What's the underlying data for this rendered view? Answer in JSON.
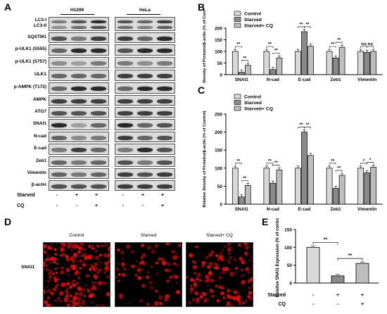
{
  "panels": {
    "A": "A",
    "B": "B",
    "C": "C",
    "D": "D",
    "E": "E"
  },
  "blot": {
    "cell_lines": [
      "H1299",
      "HeLa"
    ],
    "proteins": [
      "LC3-I",
      "LC3-II",
      "SQSTM1",
      "p-ULK1 (S555)",
      "p-ULK1 (S757)",
      "ULK1",
      "p-AMPK (T172)",
      "AMPK",
      "ATG7",
      "SNAI1",
      "N-cad",
      "E-cad",
      "Zeb1",
      "Vimentin",
      "β-actin"
    ],
    "conditions": [
      {
        "label": "Starved",
        "values": [
          "-",
          "+",
          "+",
          "-",
          "+",
          "+"
        ]
      },
      {
        "label": "CQ",
        "values": [
          "-",
          "-",
          "+",
          "-",
          "-",
          "+"
        ]
      }
    ]
  },
  "chart_data": [
    {
      "panel": "B",
      "type": "bar",
      "ylabel": "Relative Density of Proteins/β-actin (% of Control)",
      "ylim": [
        0,
        200
      ],
      "yticks": [
        "0",
        "50",
        "100",
        "150",
        "200"
      ],
      "categories": [
        "SNAI1",
        "N-cad",
        "E-cad",
        "Zeb1",
        "Vimentin"
      ],
      "series": [
        {
          "name": "Control",
          "values": [
            100,
            100,
            100,
            100,
            100
          ]
        },
        {
          "name": "Starved",
          "values": [
            10,
            22,
            185,
            72,
            96
          ]
        },
        {
          "name": "Starved+ CQ",
          "values": [
            40,
            72,
            122,
            118,
            100
          ]
        }
      ],
      "significance": [
        {
          "category": "SNAI1",
          "pairs": [
            {
              "from": 0,
              "to": 1,
              "label": "**"
            },
            {
              "from": 1,
              "to": 2,
              "label": "**"
            }
          ]
        },
        {
          "category": "N-cad",
          "pairs": [
            {
              "from": 0,
              "to": 1,
              "label": "**"
            },
            {
              "from": 1,
              "to": 2,
              "label": "**"
            }
          ]
        },
        {
          "category": "E-cad",
          "pairs": [
            {
              "from": 0,
              "to": 1,
              "label": "**"
            },
            {
              "from": 1,
              "to": 2,
              "label": "**"
            }
          ]
        },
        {
          "category": "Zeb1",
          "pairs": [
            {
              "from": 0,
              "to": 1,
              "label": "**"
            },
            {
              "from": 1,
              "to": 2,
              "label": "**"
            }
          ]
        },
        {
          "category": "Vimentin",
          "pairs": [
            {
              "from": 0,
              "to": 1,
              "label": "ns"
            },
            {
              "from": 1,
              "to": 2,
              "label": "ns"
            }
          ]
        }
      ],
      "legend": "top-left"
    },
    {
      "panel": "C",
      "type": "bar",
      "ylabel": "Relative Density of Proteins/β-actin (% of Control)",
      "ylim": [
        0,
        250
      ],
      "yticks": [
        "0",
        "50",
        "100",
        "150",
        "200",
        "250"
      ],
      "categories": [
        "SNAI1",
        "N-cad",
        "E-cad",
        "Zeb1",
        "Vimentin"
      ],
      "series": [
        {
          "name": "Control",
          "values": [
            100,
            100,
            100,
            100,
            100
          ]
        },
        {
          "name": "Starved",
          "values": [
            20,
            58,
            200,
            44,
            87
          ]
        },
        {
          "name": "Starved+ CQ",
          "values": [
            52,
            95,
            135,
            80,
            103
          ]
        }
      ],
      "significance": [
        {
          "category": "SNAI1",
          "pairs": [
            {
              "from": 0,
              "to": 1,
              "label": "**"
            },
            {
              "from": 1,
              "to": 2,
              "label": "**"
            }
          ]
        },
        {
          "category": "N-cad",
          "pairs": [
            {
              "from": 0,
              "to": 1,
              "label": "**"
            },
            {
              "from": 1,
              "to": 2,
              "label": "**"
            }
          ]
        },
        {
          "category": "E-cad",
          "pairs": [
            {
              "from": 0,
              "to": 1,
              "label": "**"
            },
            {
              "from": 1,
              "to": 2,
              "label": "**"
            }
          ]
        },
        {
          "category": "Zeb1",
          "pairs": [
            {
              "from": 0,
              "to": 1,
              "label": "**"
            },
            {
              "from": 1,
              "to": 2,
              "label": "**"
            }
          ]
        },
        {
          "category": "Vimentin",
          "pairs": [
            {
              "from": 0,
              "to": 1,
              "label": "*"
            },
            {
              "from": 1,
              "to": 2,
              "label": "*"
            }
          ]
        }
      ],
      "legend": "top-left"
    },
    {
      "panel": "E",
      "type": "bar",
      "ylabel": "Relative SNAI1 Expression (% of control)",
      "ylim": [
        0,
        150
      ],
      "yticks": [
        "0",
        "50",
        "100",
        "150"
      ],
      "categories": [
        "Control",
        "Starved",
        "Starved+ CQ"
      ],
      "values": [
        100,
        20,
        55
      ],
      "significance": [
        {
          "from": 0,
          "to": 1,
          "label": "**"
        },
        {
          "from": 1,
          "to": 2,
          "label": "**"
        }
      ],
      "conditions": [
        {
          "label": "Starved",
          "values": [
            "-",
            "+",
            "+"
          ]
        },
        {
          "label": "CQ",
          "values": [
            "-",
            "-",
            "+"
          ]
        }
      ]
    }
  ],
  "microscopy": {
    "titles": [
      "Control",
      "Starved",
      "Starved+ CQ"
    ],
    "row_label": "SNAI1",
    "stain_color": "#e01010"
  },
  "colors": {
    "control_fill": "#d8d8d8",
    "starved_fill": "#8a8a8a",
    "cq_fill": "#bdbdbd"
  }
}
